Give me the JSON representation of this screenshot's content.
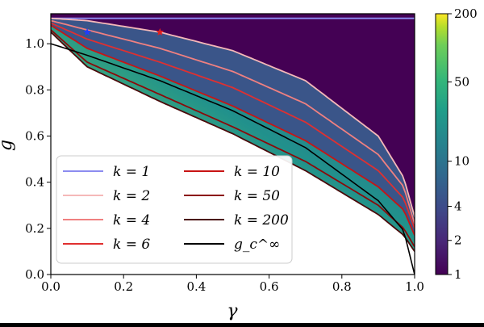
{
  "chart_data": [
    {
      "type": "heatmap",
      "title": "",
      "xlabel": "γ",
      "ylabel": "g",
      "xlim": [
        0,
        1
      ],
      "ylim": [
        0,
        1.13
      ],
      "xticks": [
        "0.0",
        "0.2",
        "0.4",
        "0.6",
        "0.8",
        "1.0"
      ],
      "yticks": [
        "0.0",
        "0.2",
        "0.4",
        "0.6",
        "0.8",
        "1.0"
      ],
      "colorbar": {
        "scale": "log",
        "range": [
          1,
          200
        ],
        "ticks": [
          "1",
          "2",
          "4",
          "10",
          "50",
          "200"
        ],
        "colormap": "viridis"
      },
      "background_color": "#440154",
      "legend_position": "lower-left",
      "series": [
        {
          "name": "k = 1",
          "color": "#8c8cf0",
          "x": [
            0,
            1
          ],
          "y": [
            1.11,
            1.11
          ]
        },
        {
          "name": "k = 2",
          "color": "#f5b8b8",
          "x": [
            0,
            0.1,
            0.3,
            0.5,
            0.7,
            0.9,
            0.97,
            1.0
          ],
          "y": [
            1.11,
            1.1,
            1.05,
            0.97,
            0.84,
            0.6,
            0.42,
            0.25
          ]
        },
        {
          "name": "k = 4",
          "color": "#f08080",
          "x": [
            0,
            0.1,
            0.3,
            0.5,
            0.7,
            0.9,
            0.97,
            1.0
          ],
          "y": [
            1.1,
            1.06,
            0.98,
            0.88,
            0.74,
            0.52,
            0.38,
            0.22
          ]
        },
        {
          "name": "k = 6",
          "color": "#e03030",
          "x": [
            0,
            0.1,
            0.3,
            0.5,
            0.7,
            0.9,
            0.97,
            1.0
          ],
          "y": [
            1.09,
            1.02,
            0.92,
            0.81,
            0.66,
            0.45,
            0.33,
            0.2
          ]
        },
        {
          "name": "k = 10",
          "color": "#c81414",
          "x": [
            0,
            0.1,
            0.3,
            0.5,
            0.7,
            0.9,
            0.97,
            1.0
          ],
          "y": [
            1.08,
            0.98,
            0.86,
            0.73,
            0.58,
            0.38,
            0.28,
            0.17
          ]
        },
        {
          "name": "k = 50",
          "color": "#8b0a0a",
          "x": [
            0,
            0.1,
            0.3,
            0.5,
            0.7,
            0.9,
            0.97,
            1.0
          ],
          "y": [
            1.06,
            0.92,
            0.78,
            0.64,
            0.49,
            0.3,
            0.2,
            0.12
          ]
        },
        {
          "name": "k = 200",
          "color": "#4a0a0a",
          "x": [
            0,
            0.1,
            0.3,
            0.5,
            0.7,
            0.9,
            0.97,
            1.0
          ],
          "y": [
            1.05,
            0.9,
            0.75,
            0.61,
            0.45,
            0.26,
            0.17,
            0.1
          ]
        },
        {
          "name": "g_c^∞",
          "color": "#000000",
          "x": [
            0,
            0.1,
            0.3,
            0.5,
            0.7,
            0.9,
            0.97,
            1.0
          ],
          "y": [
            1.0,
            0.95,
            0.84,
            0.71,
            0.55,
            0.32,
            0.19,
            0.0
          ]
        }
      ],
      "markers": [
        {
          "shape": "star",
          "color": "#1f3cff",
          "x": 0.1,
          "y": 1.05
        },
        {
          "shape": "star",
          "color": "#e02020",
          "x": 0.3,
          "y": 1.05
        }
      ],
      "legend": [
        {
          "label": "k = 1",
          "color": "#8c8cf0"
        },
        {
          "label": "k = 2",
          "color": "#f5b8b8"
        },
        {
          "label": "k = 4",
          "color": "#f08080"
        },
        {
          "label": "k = 6",
          "color": "#e03030"
        },
        {
          "label": "k = 10",
          "color": "#c81414"
        },
        {
          "label": "k = 50",
          "color": "#8b0a0a"
        },
        {
          "label": "k = 200",
          "color": "#4a0a0a"
        },
        {
          "label": "g_c^∞",
          "color": "#000000"
        }
      ]
    }
  ]
}
